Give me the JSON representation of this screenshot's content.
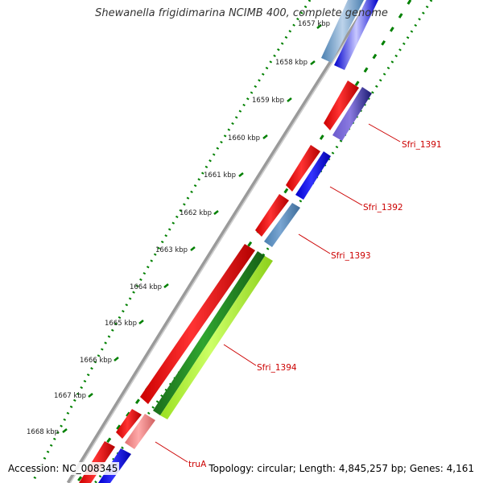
{
  "title": "Shewanella frigidimarina NCIMB 400, complete genome",
  "accession": "Accession: NC_008345",
  "stats": "Topology: circular; Length: 4,845,257 bp; Genes: 4,161",
  "tick_labels": [
    "1657 kbp",
    "1658 kbp",
    "1659 kbp",
    "1660 kbp",
    "1661 kbp",
    "1662 kbp",
    "1663 kbp",
    "1664 kbp",
    "1665 kbp",
    "1666 kbp",
    "1667 kbp",
    "1668 kbp"
  ],
  "gene_labels": [
    "Sfri_1391",
    "Sfri_1392",
    "Sfri_1393",
    "Sfri_1394",
    "truA"
  ],
  "colors": {
    "forward_cds": "#ff0000",
    "reverse_cds": "#0000ff",
    "cog_blue": "#4682b4",
    "cog_dark": "#191970",
    "cog_green": "#228b22",
    "cog_lime": "#adff2f",
    "cog_pink": "#f08080",
    "backbone": "#808080",
    "gc_skew": "#008000",
    "label": "#cc0000"
  }
}
